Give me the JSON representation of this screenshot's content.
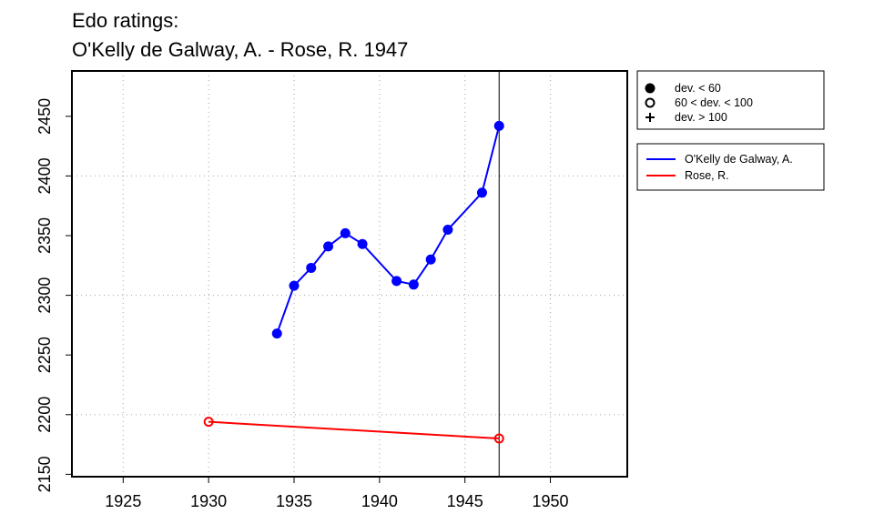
{
  "chart_data": {
    "type": "line",
    "title_lines": [
      "Edo ratings:",
      "O'Kelly de Galway, A. - Rose, R. 1947"
    ],
    "xlabel": "",
    "ylabel": "",
    "xlim": [
      1922,
      1954.5
    ],
    "ylim": [
      2148,
      2488
    ],
    "x_ticks": [
      1925,
      1930,
      1935,
      1940,
      1945,
      1950
    ],
    "y_ticks": [
      2150,
      2200,
      2250,
      2300,
      2350,
      2400,
      2450
    ],
    "grid": true,
    "vertical_marker_x": 1947,
    "series": [
      {
        "name": "O'Kelly de Galway, A.",
        "color": "#0000ff",
        "points": [
          {
            "x": 1934,
            "y": 2268,
            "marker": "filled"
          },
          {
            "x": 1935,
            "y": 2308,
            "marker": "filled"
          },
          {
            "x": 1936,
            "y": 2323,
            "marker": "filled"
          },
          {
            "x": 1937,
            "y": 2341,
            "marker": "filled"
          },
          {
            "x": 1938,
            "y": 2352,
            "marker": "filled"
          },
          {
            "x": 1939,
            "y": 2343,
            "marker": "filled"
          },
          {
            "x": 1941,
            "y": 2312,
            "marker": "filled"
          },
          {
            "x": 1942,
            "y": 2309,
            "marker": "filled"
          },
          {
            "x": 1943,
            "y": 2330,
            "marker": "filled"
          },
          {
            "x": 1944,
            "y": 2355,
            "marker": "filled"
          },
          {
            "x": 1946,
            "y": 2386,
            "marker": "filled"
          },
          {
            "x": 1947,
            "y": 2442,
            "marker": "filled"
          }
        ]
      },
      {
        "name": "Rose, R.",
        "color": "#ff0000",
        "points": [
          {
            "x": 1930,
            "y": 2194,
            "marker": "open"
          },
          {
            "x": 1947,
            "y": 2180,
            "marker": "open"
          }
        ]
      }
    ],
    "marker_legend": [
      {
        "symbol": "filled",
        "label": "dev. < 60"
      },
      {
        "symbol": "open",
        "label": "60 < dev. < 100"
      },
      {
        "symbol": "plus",
        "label": "dev. > 100"
      }
    ]
  }
}
